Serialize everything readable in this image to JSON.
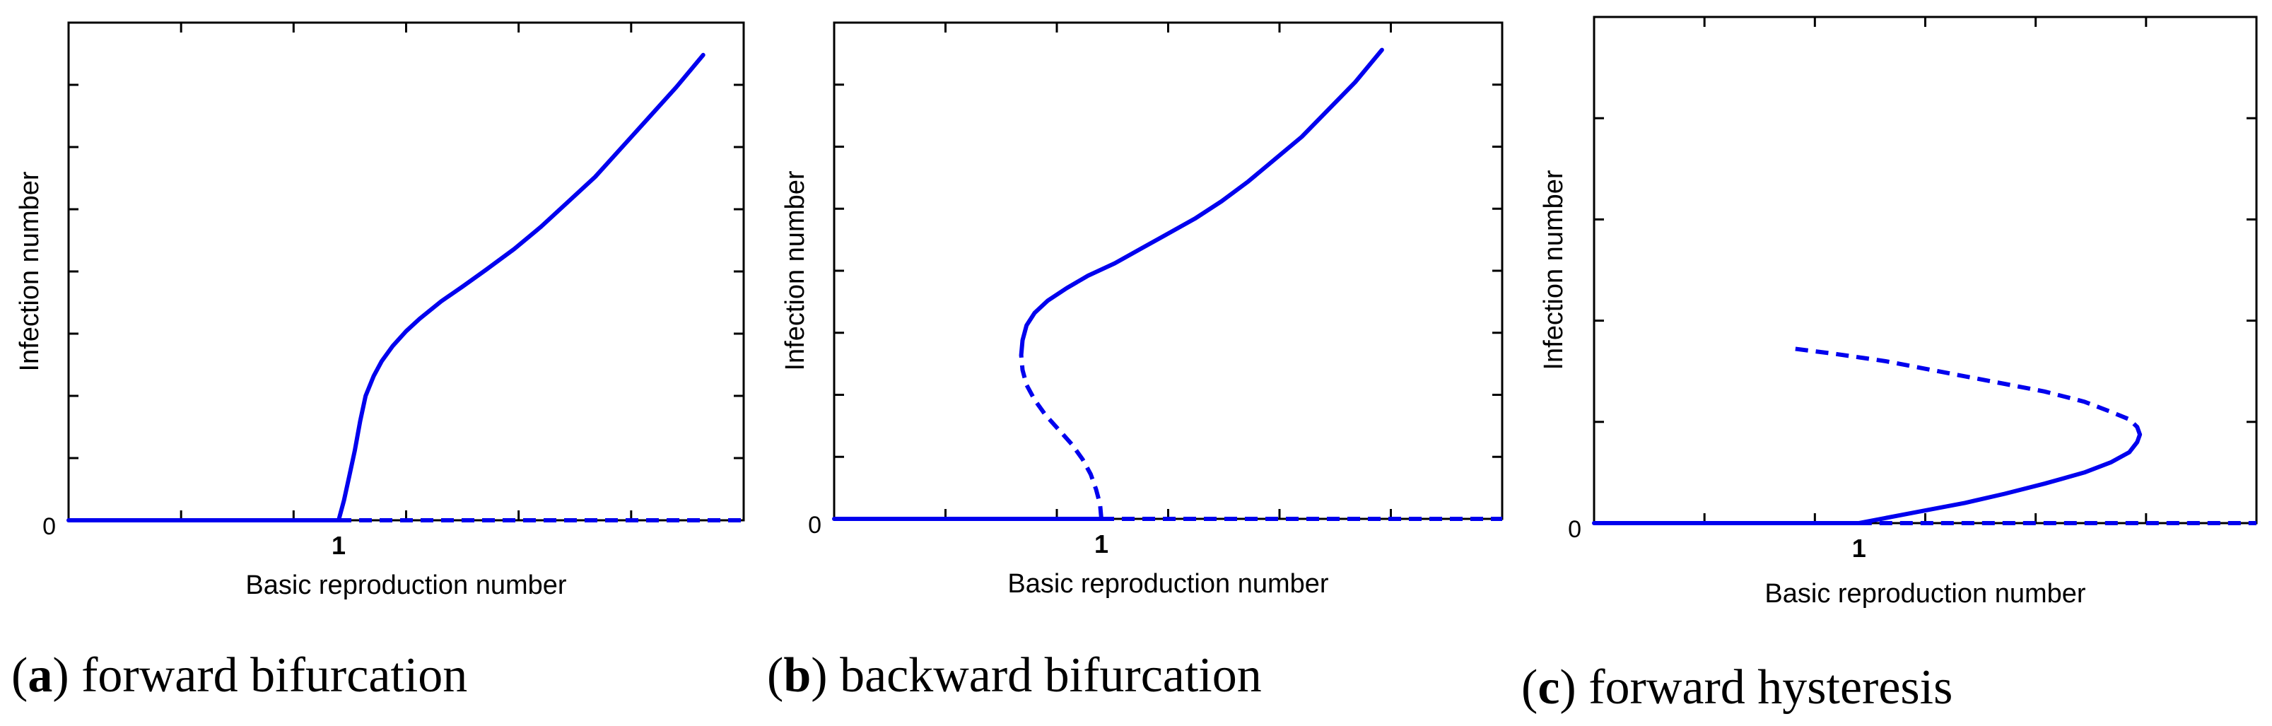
{
  "colors": {
    "curve": "#0000ee",
    "axes": "#000000"
  },
  "chart_data": [
    {
      "type": "line",
      "caption_letter": "a",
      "caption_text": "forward bifurcation",
      "xlabel": "Basic reproduction number",
      "ylabel": "Infection number",
      "xlim": [
        0,
        2.5
      ],
      "ylim": [
        0,
        1
      ],
      "x_tick_labels": [
        {
          "x": 0,
          "label": "0"
        },
        {
          "x": 1,
          "label": "1"
        }
      ],
      "series": [
        {
          "style": "solid",
          "x": [
            0,
            1
          ],
          "y": [
            0,
            0
          ]
        },
        {
          "style": "dashed",
          "x": [
            1,
            2.5
          ],
          "y": [
            0,
            0
          ]
        },
        {
          "style": "solid",
          "x": [
            1,
            1.02,
            1.04,
            1.06,
            1.08,
            1.1,
            1.13,
            1.16,
            1.2,
            1.25,
            1.3,
            1.38,
            1.46,
            1.55,
            1.65,
            1.75,
            1.85,
            1.95,
            2.05,
            2.15,
            2.25,
            2.35
          ],
          "y": [
            0,
            0.04,
            0.09,
            0.14,
            0.2,
            0.25,
            0.29,
            0.32,
            0.35,
            0.38,
            0.405,
            0.44,
            0.47,
            0.505,
            0.545,
            0.59,
            0.64,
            0.69,
            0.75,
            0.81,
            0.87,
            0.935
          ]
        }
      ]
    },
    {
      "type": "line",
      "caption_letter": "b",
      "caption_text": "backward bifurcation",
      "xlabel": "Basic reproduction number",
      "ylabel": "Infection number",
      "xlim": [
        0,
        2.5
      ],
      "ylim": [
        0,
        1
      ],
      "x_tick_labels": [
        {
          "x": 0,
          "label": "0"
        },
        {
          "x": 1,
          "label": "1"
        }
      ],
      "series": [
        {
          "style": "solid",
          "x": [
            0,
            1
          ],
          "y": [
            0,
            0
          ]
        },
        {
          "style": "dashed",
          "x": [
            1,
            2.5
          ],
          "y": [
            0,
            0
          ]
        },
        {
          "style": "dashed",
          "x": [
            1,
            0.995,
            0.98,
            0.96,
            0.93,
            0.89,
            0.84,
            0.79,
            0.75,
            0.72,
            0.705,
            0.7
          ],
          "y": [
            0,
            0.03,
            0.06,
            0.09,
            0.12,
            0.15,
            0.18,
            0.21,
            0.24,
            0.27,
            0.3,
            0.33
          ]
        },
        {
          "style": "solid",
          "x": [
            0.7,
            0.705,
            0.72,
            0.75,
            0.8,
            0.87,
            0.95,
            1.05,
            1.15,
            1.25,
            1.35,
            1.45,
            1.55,
            1.65,
            1.75,
            1.85,
            1.95,
            2.05
          ],
          "y": [
            0.33,
            0.36,
            0.39,
            0.415,
            0.44,
            0.465,
            0.49,
            0.515,
            0.545,
            0.575,
            0.605,
            0.64,
            0.68,
            0.725,
            0.77,
            0.825,
            0.88,
            0.945
          ]
        }
      ]
    },
    {
      "type": "line",
      "caption_letter": "c",
      "caption_text": "forward hysteresis",
      "xlabel": "Basic reproduction number",
      "ylabel": "Infection number",
      "xlim": [
        0,
        2.5
      ],
      "ylim": [
        0,
        1
      ],
      "x_tick_labels": [
        {
          "x": 0,
          "label": "0"
        },
        {
          "x": 1,
          "label": "1"
        }
      ],
      "series": [
        {
          "style": "solid",
          "x": [
            0,
            1
          ],
          "y": [
            0,
            0
          ]
        },
        {
          "style": "dashed",
          "x": [
            1,
            2.5
          ],
          "y": [
            0,
            0
          ]
        },
        {
          "style": "solid",
          "x": [
            1,
            1.1,
            1.25,
            1.4,
            1.55,
            1.7,
            1.85,
            1.95,
            2.02,
            2.05,
            2.06
          ],
          "y": [
            0,
            0.01,
            0.025,
            0.04,
            0.058,
            0.078,
            0.1,
            0.12,
            0.14,
            0.16,
            0.175
          ]
        },
        {
          "style": "dashed",
          "x": [
            2.06,
            2.05,
            2.02,
            1.95,
            1.85,
            1.7,
            1.5,
            1.3,
            1.1,
            0.9,
            0.75
          ],
          "y": [
            0.175,
            0.19,
            0.205,
            0.22,
            0.24,
            0.26,
            0.28,
            0.3,
            0.32,
            0.335,
            0.345
          ]
        }
      ]
    }
  ]
}
